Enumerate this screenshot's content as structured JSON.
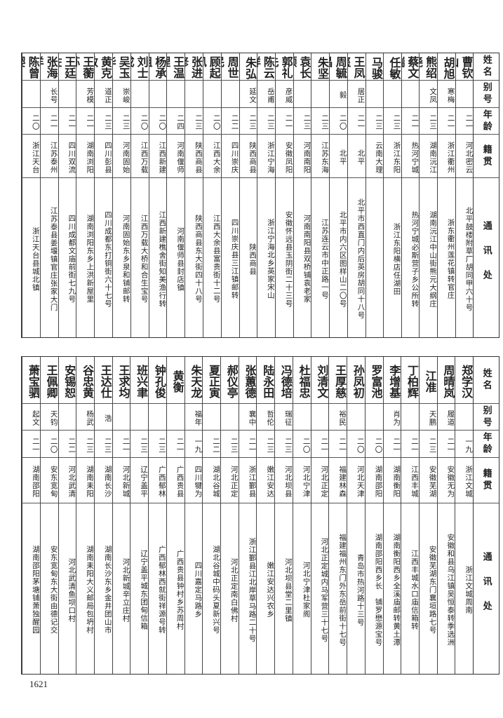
{
  "headers": {
    "name": "姓名",
    "alias": "别号",
    "age": "年龄",
    "native": "籍贯",
    "address": "通讯处"
  },
  "top_rows": [
    {
      "name": "曹钦山",
      "alias": "",
      "age": "二一",
      "native": "河北密云",
      "address": "北平鼓楼附草厂胡同甲六十号"
    },
    {
      "name": "胡旭",
      "alias": "寒梅",
      "age": "二一",
      "native": "浙江衢州",
      "address": "浙东衢州莲花镇转官庄"
    },
    {
      "name": "熊绍尧",
      "alias": "文凤",
      "age": "二三",
      "native": "湖南沅江",
      "address": "湖南沅江中山街熊元大纲庄"
    },
    {
      "name": "蔡文瑞",
      "alias": "",
      "age": "二一",
      "native": "热河宁城",
      "address": "热河宁城必斯营子乡公所转"
    },
    {
      "name": "任敏",
      "alias": "",
      "age": "二三",
      "native": "浙江东阳",
      "address": "浙江东阳横店任湖田"
    },
    {
      "name": "马骏",
      "alias": "",
      "age": "二三",
      "native": "云南大理",
      "address": ""
    },
    {
      "name": "王凤玺",
      "alias": "居正",
      "age": "二一",
      "native": "北平",
      "address": "北平市西直门内后英房胡同十八号"
    },
    {
      "name": "周毓昌",
      "alias": "毅",
      "age": "二〇",
      "native": "北平",
      "address": "北平市内六区图样山二〇号"
    },
    {
      "name": "朱坚",
      "alias": "",
      "age": "二三",
      "native": "江苏东海",
      "address": "江苏连云市中正路一号"
    },
    {
      "name": "袁长顺",
      "alias": "",
      "age": "二三",
      "native": "河南南阳",
      "address": "河南南阳县双桥铺袁老家"
    },
    {
      "name": "郭礼先",
      "alias": "彦威",
      "age": "二一",
      "native": "安徽凤阳",
      "address": "安徽怀远县玉阴街二十三号"
    },
    {
      "name": "陈云祥",
      "alias": "岳甫",
      "age": "二三",
      "native": "浙江宁海",
      "address": "浙江宁海北乡英家宋山"
    },
    {
      "name": "朱弘",
      "alias": "延文",
      "age": "二三",
      "native": "陕西商县",
      "address": "陕西商县"
    },
    {
      "name": "周世民",
      "alias": "",
      "age": "二二",
      "native": "四川崇庆",
      "address": "四川崇庆县三江镇邮转"
    },
    {
      "name": "顾起凤",
      "alias": "",
      "age": "二〇",
      "native": "江西大余",
      "address": "江西大余县富贵街十二号"
    },
    {
      "name": "张进修",
      "alias": "",
      "age": "二三",
      "native": "陕西商县",
      "address": "陕西商县东大街四十八号"
    },
    {
      "name": "王温理",
      "alias": "",
      "age": "二四",
      "native": "河南偃师",
      "address": "河南偃师县封店镇"
    },
    {
      "name": "杨承祖",
      "alias": "",
      "age": "二〇",
      "native": "江西新建",
      "address": "江西新建樵舍街知美渔行转"
    },
    {
      "name": "刘士成",
      "alias": "",
      "age": "二〇",
      "native": "江西万载",
      "address": "江西万载大桥和合生宝号"
    },
    {
      "name": "吴玉华",
      "alias": "崇峻",
      "age": "二三",
      "native": "河南固始",
      "address": "河南固始东乡泉和铺邮转"
    },
    {
      "name": "黄克敏",
      "alias": "道正",
      "age": "二三",
      "native": "四川彭县",
      "address": "四川成都东打铜街六十七号"
    },
    {
      "name": "王蘅荪",
      "alias": "芳模",
      "age": "二一",
      "native": "湖南浏阳",
      "address": "湖南浏阳东乡上洪新屋里"
    },
    {
      "name": "王廷佐",
      "alias": "",
      "age": "二一",
      "native": "四川双流",
      "address": "四川成都文庙前街七九号"
    },
    {
      "name": "张海洋",
      "alias": "长号",
      "age": "二一",
      "native": "江苏泰州",
      "address": "江苏泰县姜堰镇官庄张家大门"
    },
    {
      "name": "陈曾婴",
      "alias": "",
      "age": "二〇",
      "native": "浙江天台",
      "address": "浙江天台县城北镇"
    }
  ],
  "bottom_rows": [
    {
      "name": "郑学汉",
      "alias": "",
      "age": "一九",
      "native": "浙江文城",
      "address": "浙江文城周南"
    },
    {
      "name": "周晴岚",
      "alias": "履道",
      "age": "二一",
      "native": "安徽无为",
      "address": "安徽和县乌江镇吴恒泰转季选洲"
    },
    {
      "name": "江准",
      "alias": "天鹏",
      "age": "二三",
      "native": "安徽芜湖",
      "address": "安徽芜湖东门襄垣路七号"
    },
    {
      "name": "丁柏辉",
      "alias": "",
      "age": "二一",
      "native": "江西丰城",
      "address": "江西丰城水口庙信箱转"
    },
    {
      "name": "李增基",
      "alias": "肖为",
      "age": "二一",
      "native": "湖南衡阳",
      "address": "湖南衡阳西乡全溪庙邮转黄土潭"
    },
    {
      "name": "罗富池",
      "alias": "",
      "age": "二〇",
      "native": "湖南邵阳",
      "address": "湖南邵阳西乡长　铺罗懋源宝号"
    },
    {
      "name": "孙凤初",
      "alias": "",
      "age": "二〇",
      "native": "河北天津",
      "address": "青岛市热河路十三号"
    },
    {
      "name": "王厚慈",
      "alias": "裕民",
      "age": "二一",
      "native": "福建林森",
      "address": "福建福州东门外东岳前街十七号"
    },
    {
      "name": "刘清文",
      "alias": "",
      "age": "二一",
      "native": "河北正定",
      "address": "河北正定城内马军营三十七号"
    },
    {
      "name": "杜福忠",
      "alias": "",
      "age": "二〇",
      "native": "河北宁津",
      "address": "河北宁津杜家阁"
    },
    {
      "name": "冯德培",
      "alias": "瑞征",
      "age": "二三",
      "native": "河北坝县",
      "address": "河北坝县堂二里镇"
    },
    {
      "name": "陆永田",
      "alias": "哲伦",
      "age": "二三",
      "native": "嫩江安达",
      "address": "嫩江安达兴农乡"
    },
    {
      "name": "张蕙德",
      "alias": "襄中",
      "age": "二一",
      "native": "浙江鄞县",
      "address": "浙江鄞县江北岸草马路二十号"
    },
    {
      "name": "郝仪亭",
      "alias": "",
      "age": "二三",
      "native": "河北正定",
      "address": "河北正定南白佛村"
    },
    {
      "name": "夏正寅",
      "alias": "",
      "age": "二二",
      "native": "湖北谷城",
      "address": "湖北谷城中码头夏新兴号"
    },
    {
      "name": "朱天龙",
      "alias": "福年",
      "age": "一九",
      "native": "四川犍为",
      "address": "四川嘉定马路乡"
    },
    {
      "name": "黄衡",
      "alias": "",
      "age": "二一",
      "native": "广西贵县",
      "address": "广西贵县钟村乡苏周村"
    },
    {
      "name": "钟孔俊",
      "alias": "",
      "age": "二三",
      "native": "广西郁林",
      "address": "广西郁林西就街祥源号转"
    },
    {
      "name": "班兴聿",
      "alias": "",
      "age": "二三",
      "native": "辽宁盖平",
      "address": "辽宁盖平城东团甸信箱"
    },
    {
      "name": "王求均",
      "alias": "",
      "age": "二一",
      "native": "河北新城",
      "address": "河北新城辛立庄村"
    },
    {
      "name": "王达仕",
      "alias": "浩",
      "age": "二三",
      "native": "湖南长沙",
      "address": "湖南长沙东乡金井团山市"
    },
    {
      "name": "谷忠黄",
      "alias": "杨武",
      "age": "二三",
      "native": "湖南耒阳",
      "address": "湖南耒阳大义邮局包坍村"
    },
    {
      "name": "安锡恕",
      "alias": "",
      "age": "二二",
      "native": "河北武清",
      "address": "河北武清鱼坝口村"
    },
    {
      "name": "王佩卿",
      "alias": "天钧",
      "age": "二〇",
      "native": "安东宽甸",
      "address": "安东宽甸东大街由德记交"
    },
    {
      "name": "萧宝驷",
      "alias": "起文",
      "age": "二一",
      "native": "湖南邵阳",
      "address": "湖南邵阳茅塘铺萧独醒园"
    }
  ],
  "page_number": "1621"
}
